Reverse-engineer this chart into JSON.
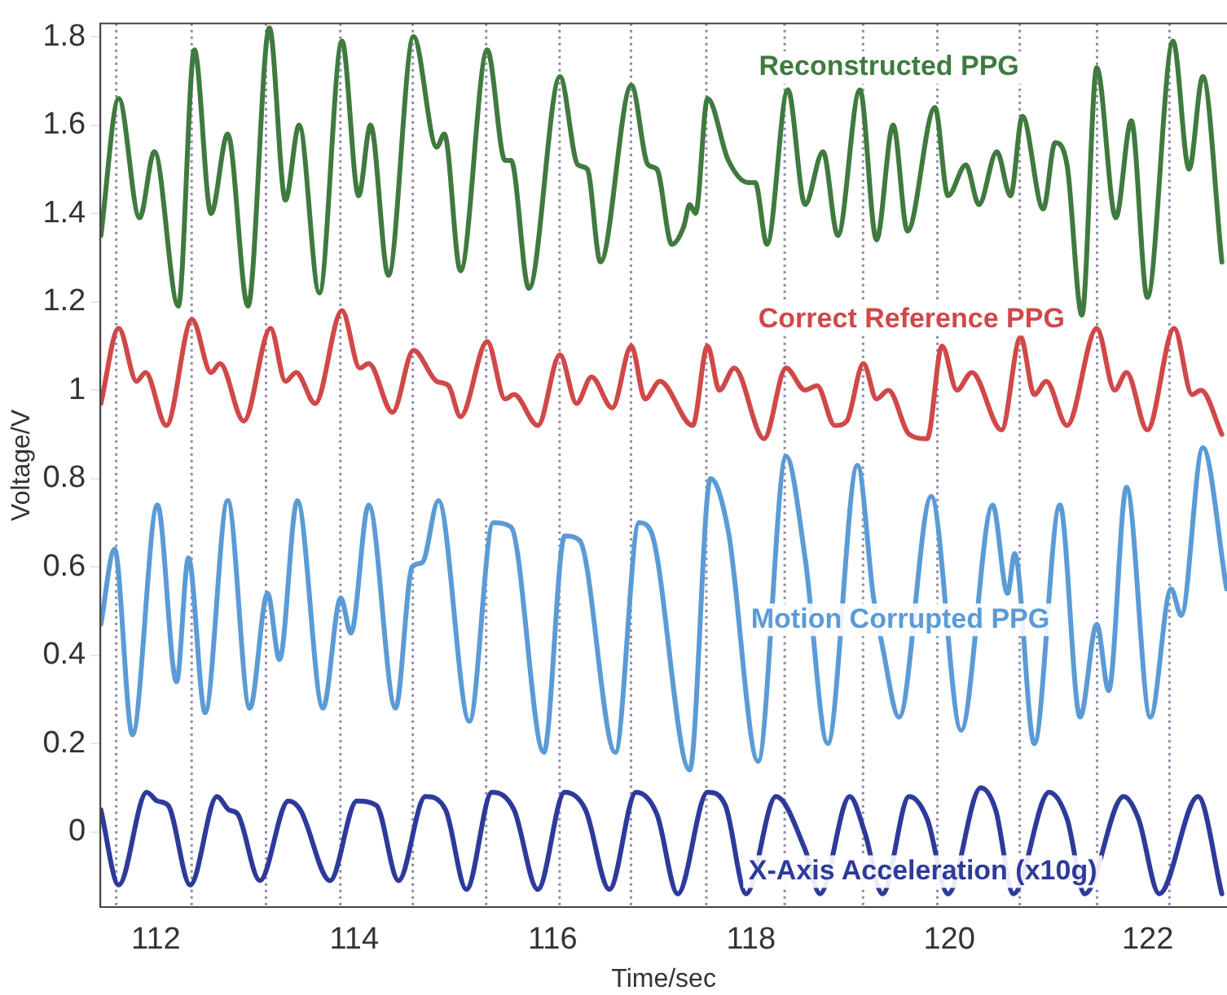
{
  "chart_data": {
    "type": "line",
    "xlabel": "Time/sec",
    "ylabel": "Voltage/V",
    "xlim": [
      111.44,
      122.8
    ],
    "ylim": [
      -0.17,
      1.83
    ],
    "xticks": [
      112,
      114,
      116,
      118,
      120,
      122
    ],
    "yticks": [
      0,
      0.2,
      0.4,
      0.6,
      0.8,
      1,
      1.2,
      1.4,
      1.6,
      1.8
    ],
    "grid": false,
    "legend": false,
    "line_style": "solid",
    "ref_lines": [
      {
        "axis": "x",
        "value": 111.6,
        "color": "#8a8aa8",
        "line_style": "dotted"
      },
      {
        "axis": "x",
        "value": 112.36,
        "color": "#8a8aa8",
        "line_style": "dotted"
      },
      {
        "axis": "x",
        "value": 113.11,
        "color": "#8a8aa8",
        "line_style": "dotted"
      },
      {
        "axis": "x",
        "value": 113.86,
        "color": "#8a8aa8",
        "line_style": "dotted"
      },
      {
        "axis": "x",
        "value": 114.59,
        "color": "#8a8aa8",
        "line_style": "dotted"
      },
      {
        "axis": "x",
        "value": 115.33,
        "color": "#8a8aa8",
        "line_style": "dotted"
      },
      {
        "axis": "x",
        "value": 116.07,
        "color": "#8a8aa8",
        "line_style": "dotted"
      },
      {
        "axis": "x",
        "value": 116.79,
        "color": "#8a8aa8",
        "line_style": "dotted"
      },
      {
        "axis": "x",
        "value": 117.55,
        "color": "#8a8aa8",
        "line_style": "dotted"
      },
      {
        "axis": "x",
        "value": 118.34,
        "color": "#8a8aa8",
        "line_style": "dotted"
      },
      {
        "axis": "x",
        "value": 119.13,
        "color": "#8a8aa8",
        "line_style": "dotted"
      },
      {
        "axis": "x",
        "value": 119.88,
        "color": "#8a8aa8",
        "line_style": "dotted"
      },
      {
        "axis": "x",
        "value": 120.71,
        "color": "#8a8aa8",
        "line_style": "dotted"
      },
      {
        "axis": "x",
        "value": 121.49,
        "color": "#8a8aa8",
        "line_style": "dotted"
      },
      {
        "axis": "x",
        "value": 122.22,
        "color": "#8a8aa8",
        "line_style": "dotted"
      }
    ],
    "series": [
      {
        "name": "Reconstructed PPG",
        "color": "#3f7a3f",
        "x": [
          111.445,
          111.625,
          111.835,
          111.985,
          112.226,
          112.388,
          112.556,
          112.724,
          112.928,
          113.144,
          113.306,
          113.444,
          113.648,
          113.876,
          114.044,
          114.164,
          114.344,
          114.597,
          114.831,
          114.909,
          115.071,
          115.341,
          115.521,
          115.581,
          115.761,
          116.074,
          116.254,
          116.35,
          116.482,
          116.794,
          116.962,
          117.052,
          117.202,
          117.322,
          117.382,
          117.442,
          117.562,
          117.772,
          117.97,
          118.042,
          118.162,
          118.372,
          118.546,
          118.726,
          118.876,
          119.098,
          119.266,
          119.434,
          119.578,
          119.855,
          119.987,
          120.167,
          120.299,
          120.479,
          120.617,
          120.737,
          120.947,
          121.067,
          121.187,
          121.337,
          121.487,
          121.679,
          121.835,
          121.997,
          122.256,
          122.418,
          122.556,
          122.748
        ],
        "values": [
          1.35,
          1.66,
          1.39,
          1.54,
          1.19,
          1.77,
          1.4,
          1.58,
          1.19,
          1.82,
          1.43,
          1.6,
          1.22,
          1.79,
          1.44,
          1.6,
          1.26,
          1.8,
          1.55,
          1.58,
          1.27,
          1.77,
          1.52,
          1.52,
          1.23,
          1.71,
          1.51,
          1.5,
          1.29,
          1.69,
          1.51,
          1.5,
          1.33,
          1.37,
          1.42,
          1.4,
          1.66,
          1.52,
          1.47,
          1.47,
          1.33,
          1.68,
          1.42,
          1.54,
          1.35,
          1.68,
          1.34,
          1.6,
          1.36,
          1.64,
          1.44,
          1.51,
          1.42,
          1.54,
          1.44,
          1.62,
          1.41,
          1.56,
          1.51,
          1.17,
          1.73,
          1.39,
          1.61,
          1.21,
          1.79,
          1.5,
          1.71,
          1.29
        ]
      },
      {
        "name": "Correct Reference PPG",
        "color": "#d04848",
        "x": [
          111.445,
          111.625,
          111.805,
          111.895,
          112.105,
          112.364,
          112.556,
          112.646,
          112.886,
          113.156,
          113.306,
          113.414,
          113.606,
          113.876,
          114.056,
          114.146,
          114.386,
          114.597,
          114.831,
          114.951,
          115.071,
          115.341,
          115.521,
          115.611,
          115.851,
          116.074,
          116.242,
          116.392,
          116.602,
          116.794,
          116.932,
          117.082,
          117.412,
          117.562,
          117.682,
          117.832,
          118.132,
          118.354,
          118.546,
          118.666,
          118.846,
          118.966,
          119.134,
          119.266,
          119.386,
          119.596,
          119.776,
          119.927,
          120.077,
          120.227,
          120.527,
          120.719,
          120.857,
          120.977,
          121.187,
          121.487,
          121.667,
          121.787,
          121.997,
          122.268,
          122.448,
          122.538,
          122.748
        ],
        "values": [
          0.97,
          1.14,
          1.02,
          1.04,
          0.92,
          1.16,
          1.04,
          1.06,
          0.93,
          1.14,
          1.02,
          1.04,
          0.97,
          1.18,
          1.05,
          1.06,
          0.95,
          1.09,
          1.02,
          1.01,
          0.94,
          1.11,
          0.98,
          0.99,
          0.92,
          1.08,
          0.97,
          1.03,
          0.96,
          1.1,
          0.98,
          1.02,
          0.92,
          1.1,
          1.0,
          1.05,
          0.89,
          1.05,
          1.0,
          1.01,
          0.92,
          0.93,
          1.06,
          0.98,
          1.0,
          0.9,
          0.89,
          1.1,
          1.0,
          1.04,
          0.91,
          1.12,
          0.99,
          1.02,
          0.92,
          1.14,
          1.0,
          1.04,
          0.91,
          1.14,
          0.99,
          1.0,
          0.9
        ]
      },
      {
        "name": "Motion Corrupted PPG",
        "color": "#5b9bd5",
        "x": [
          111.445,
          111.583,
          111.763,
          112.015,
          112.208,
          112.328,
          112.496,
          112.724,
          112.946,
          113.126,
          113.246,
          113.426,
          113.684,
          113.864,
          113.966,
          114.146,
          114.416,
          114.584,
          114.686,
          114.849,
          115.161,
          115.401,
          115.581,
          115.911,
          116.122,
          116.272,
          116.632,
          116.872,
          116.992,
          117.382,
          117.592,
          117.772,
          118.072,
          118.354,
          118.546,
          118.774,
          119.074,
          119.236,
          119.326,
          119.494,
          119.818,
          120.119,
          120.437,
          120.587,
          120.659,
          120.857,
          121.115,
          121.319,
          121.487,
          121.607,
          121.787,
          122.027,
          122.237,
          122.339,
          122.556,
          122.796
        ],
        "values": [
          0.47,
          0.64,
          0.22,
          0.74,
          0.34,
          0.62,
          0.27,
          0.75,
          0.28,
          0.54,
          0.39,
          0.75,
          0.28,
          0.53,
          0.45,
          0.74,
          0.28,
          0.6,
          0.61,
          0.75,
          0.25,
          0.7,
          0.69,
          0.18,
          0.67,
          0.66,
          0.18,
          0.7,
          0.68,
          0.14,
          0.8,
          0.68,
          0.16,
          0.85,
          0.62,
          0.2,
          0.83,
          0.53,
          0.42,
          0.26,
          0.76,
          0.23,
          0.74,
          0.54,
          0.63,
          0.2,
          0.74,
          0.26,
          0.47,
          0.32,
          0.78,
          0.26,
          0.55,
          0.49,
          0.87,
          0.55
        ]
      },
      {
        "name": "X-Axis Acceleration (x10g)",
        "color": "#2e3a9a",
        "x": [
          111.445,
          111.625,
          111.907,
          112.015,
          112.124,
          112.346,
          112.616,
          112.736,
          112.826,
          113.048,
          113.336,
          113.456,
          113.756,
          114.026,
          114.224,
          114.446,
          114.717,
          114.921,
          115.131,
          115.389,
          115.611,
          115.851,
          116.122,
          116.332,
          116.572,
          116.842,
          117.052,
          117.262,
          117.562,
          117.742,
          117.952,
          118.252,
          118.546,
          118.696,
          118.996,
          119.146,
          119.326,
          119.596,
          119.776,
          119.987,
          120.317,
          120.467,
          120.647,
          121.007,
          121.187,
          121.367,
          121.757,
          121.907,
          122.117,
          122.508,
          122.748
        ],
        "values": [
          0.05,
          -0.12,
          0.09,
          0.07,
          0.06,
          -0.12,
          0.08,
          0.05,
          0.04,
          -0.11,
          0.07,
          0.05,
          -0.11,
          0.07,
          0.06,
          -0.11,
          0.08,
          0.05,
          -0.13,
          0.09,
          0.05,
          -0.13,
          0.09,
          0.05,
          -0.13,
          0.09,
          0.04,
          -0.14,
          0.09,
          0.06,
          -0.14,
          0.08,
          -0.04,
          -0.14,
          0.08,
          0.0,
          -0.14,
          0.08,
          0.03,
          -0.14,
          0.1,
          0.05,
          -0.14,
          0.09,
          0.03,
          -0.14,
          0.08,
          0.03,
          -0.14,
          0.08,
          -0.14
        ]
      }
    ]
  }
}
